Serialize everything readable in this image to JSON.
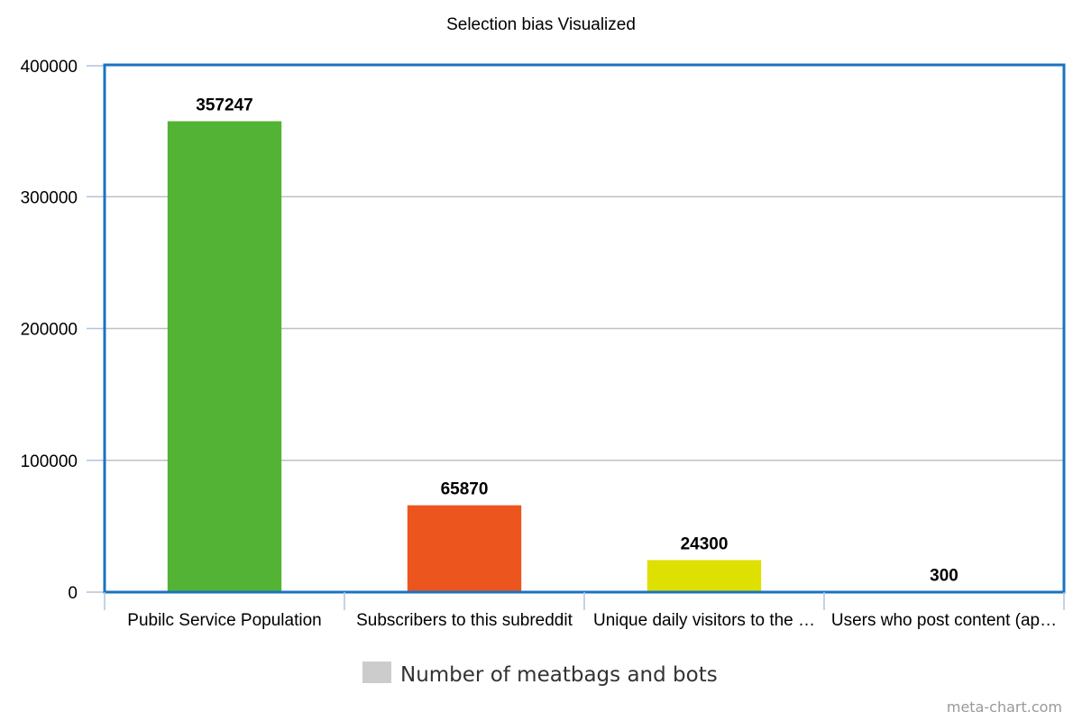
{
  "chart_data": {
    "type": "bar",
    "title": "Selection bias Visualized",
    "categories": [
      "Pubilc Service Population",
      "Subscribers to this subreddit",
      "Unique daily visitors to the …",
      "Users who post content (ap…"
    ],
    "series": [
      {
        "name": "Number of meatbags and bots",
        "values": [
          357247,
          65870,
          24300,
          300
        ],
        "data_labels": [
          "357247",
          "65870",
          "24300",
          "300"
        ],
        "colors": [
          "#52b334",
          "#ec561e",
          "#dde000",
          "#dde000"
        ]
      }
    ],
    "legend_color": "#cccccc",
    "ylim": [
      0,
      400000
    ],
    "yticks": [
      {
        "value": 0,
        "label": "0"
      },
      {
        "value": 100000,
        "label": "100000"
      },
      {
        "value": 200000,
        "label": "200000"
      },
      {
        "value": 300000,
        "label": "300000"
      },
      {
        "value": 400000,
        "label": "400000"
      }
    ],
    "grid": true,
    "legend_position": "bottom",
    "border_color": "#1a73c0"
  },
  "credit": "meta-chart.com"
}
